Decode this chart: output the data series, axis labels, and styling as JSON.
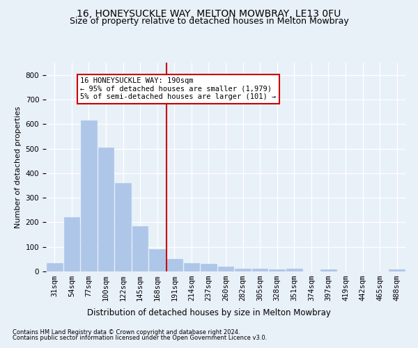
{
  "title": "16, HONEYSUCKLE WAY, MELTON MOWBRAY, LE13 0FU",
  "subtitle": "Size of property relative to detached houses in Melton Mowbray",
  "xlabel": "Distribution of detached houses by size in Melton Mowbray",
  "ylabel": "Number of detached properties",
  "footnote1": "Contains HM Land Registry data © Crown copyright and database right 2024.",
  "footnote2": "Contains public sector information licensed under the Open Government Licence v3.0.",
  "bin_labels": [
    "31sqm",
    "54sqm",
    "77sqm",
    "100sqm",
    "122sqm",
    "145sqm",
    "168sqm",
    "191sqm",
    "214sqm",
    "237sqm",
    "260sqm",
    "282sqm",
    "305sqm",
    "328sqm",
    "351sqm",
    "374sqm",
    "397sqm",
    "419sqm",
    "442sqm",
    "465sqm",
    "488sqm"
  ],
  "bar_values": [
    35,
    220,
    615,
    505,
    360,
    185,
    90,
    50,
    35,
    30,
    20,
    10,
    12,
    8,
    10,
    0,
    8,
    0,
    0,
    0,
    8
  ],
  "bar_color": "#aec6e8",
  "bar_edgecolor": "#aec6e8",
  "background_color": "#e8f0f8",
  "grid_color": "#ffffff",
  "vline_x_index": 7,
  "vline_color": "#cc0000",
  "annotation_text": "16 HONEYSUCKLE WAY: 190sqm\n← 95% of detached houses are smaller (1,979)\n5% of semi-detached houses are larger (101) →",
  "annotation_box_color": "#ffffff",
  "annotation_box_edgecolor": "#cc0000",
  "ylim": [
    0,
    850
  ],
  "yticks": [
    0,
    100,
    200,
    300,
    400,
    500,
    600,
    700,
    800
  ],
  "title_fontsize": 10,
  "subtitle_fontsize": 9,
  "xlabel_fontsize": 8.5,
  "ylabel_fontsize": 8,
  "tick_fontsize": 7.5,
  "annotation_fontsize": 7.5,
  "footnote_fontsize": 6
}
